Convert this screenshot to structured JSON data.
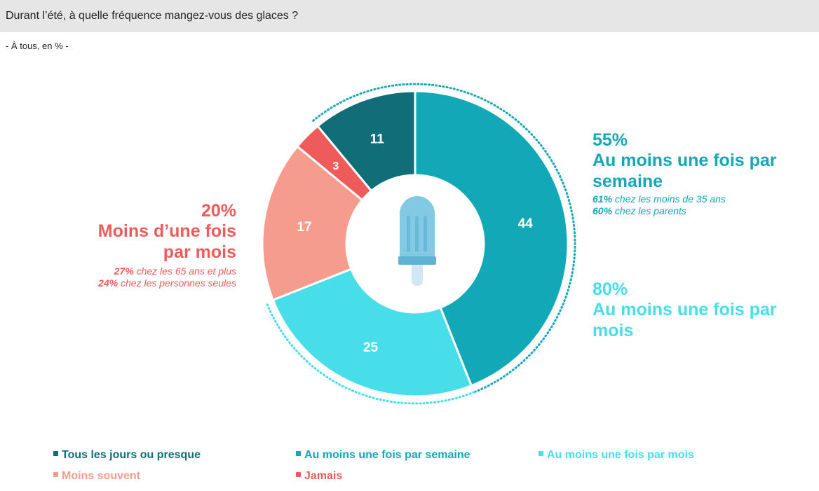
{
  "header": {
    "question": "Durant l’été, à quelle fréquence mangez-vous des glaces ?",
    "base": "- À tous, en % -"
  },
  "chart_data": {
    "type": "pie",
    "donut": true,
    "unit": "%",
    "categories": [
      "Tous les jours ou presque",
      "Au moins une fois par semaine",
      "Au moins une fois par mois",
      "Moins souvent",
      "Jamais"
    ],
    "values": [
      11,
      44,
      25,
      17,
      3
    ],
    "colors": [
      "#106e78",
      "#12a8b6",
      "#47dde9",
      "#f59c8e",
      "#ef5b5b"
    ],
    "label_colors": [
      "#ffffff",
      "#ffffff",
      "#ffffff",
      "#ffffff",
      "#ffffff"
    ],
    "center_icon": "ice-pop-icon",
    "legend_position": "bottom-left",
    "groups": [
      {
        "label": "Au moins une fois par semaine",
        "categories": [
          "Tous les jours ou presque",
          "Au moins une fois par semaine"
        ],
        "total": 55,
        "arc_style": "dotted",
        "color": "#12a8b6"
      },
      {
        "label": "Au moins une fois par mois",
        "categories": [
          "Tous les jours ou presque",
          "Au moins une fois par semaine",
          "Au moins une fois par mois"
        ],
        "total": 80,
        "arc_style": "dotted",
        "color": "#47dde9"
      }
    ]
  },
  "annotations": {
    "left": {
      "pct": "20%",
      "label_line1": "Moins d’une fois",
      "label_line2": "par mois",
      "sub1_pct": "27%",
      "sub1_text": " chez les 65 ans et plus",
      "sub2_pct": "24%",
      "sub2_text": " chez les personnes seules",
      "color": "#ef5b5b"
    },
    "right_top": {
      "pct": "55%",
      "label_line1": "Au moins une fois par",
      "label_line2": "semaine",
      "sub1_pct": "61%",
      "sub1_text": " chez les moins de 35 ans",
      "sub2_pct": "60%",
      "sub2_text": " chez les parents",
      "color": "#12a8b6"
    },
    "right_bottom": {
      "pct": "80%",
      "label_line1": "Au moins une fois par",
      "label_line2": "mois",
      "color": "#47dde9"
    }
  },
  "legend": [
    {
      "label": "Tous les jours ou presque",
      "color": "#106e78"
    },
    {
      "label": "Au moins une fois par semaine",
      "color": "#12a8b6"
    },
    {
      "label": "Au moins une fois par mois",
      "color": "#47dde9"
    },
    {
      "label": "Moins souvent",
      "color": "#f59c8e"
    },
    {
      "label": "Jamais",
      "color": "#ef5b5b"
    }
  ]
}
